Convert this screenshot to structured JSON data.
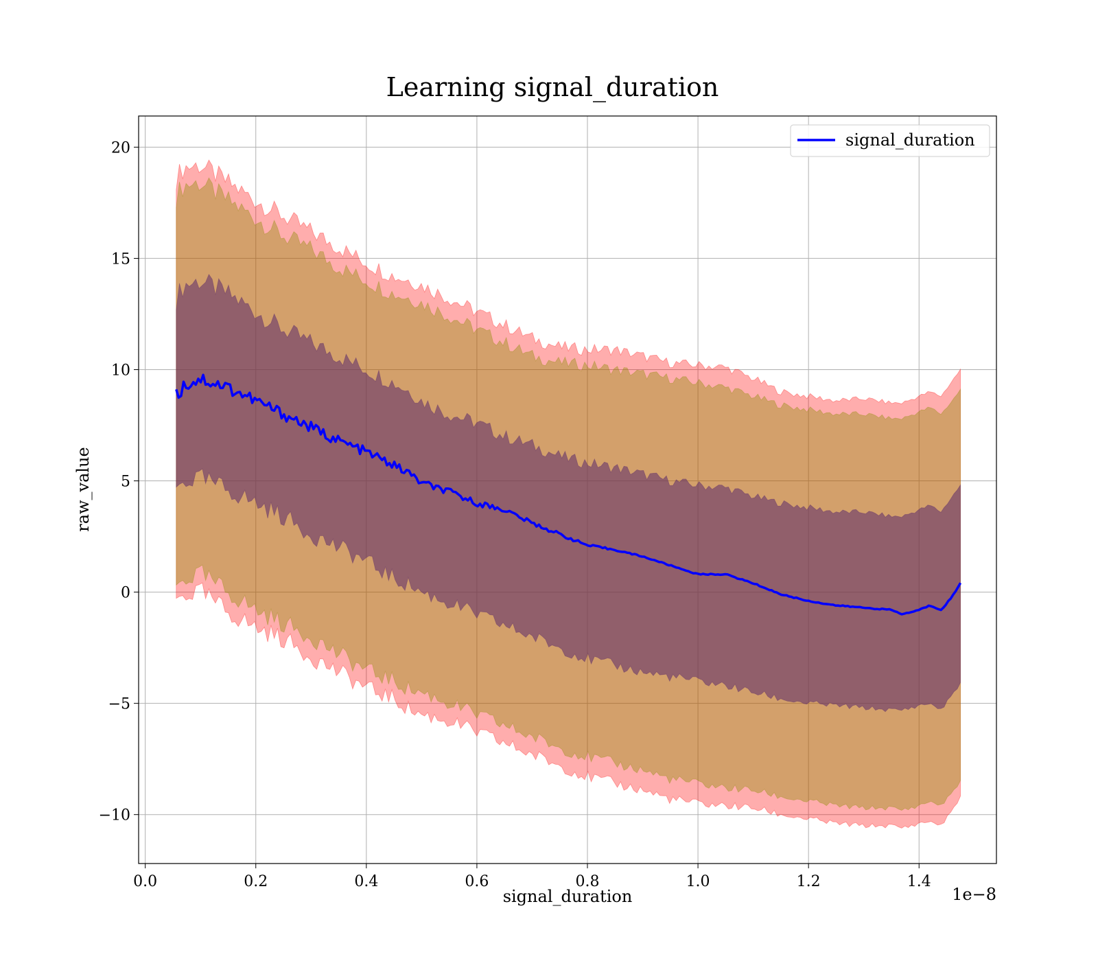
{
  "chart_data": {
    "type": "line",
    "title": "Learning signal_duration",
    "xlabel": "signal_duration",
    "ylabel": "raw_value",
    "x_offset_label": "1e−8",
    "x_scale_exponent": -8,
    "xlim": [
      -1.2e-10,
      1.54e-08
    ],
    "ylim": [
      -12.2,
      21.4
    ],
    "x_ticks": [
      0.0,
      2e-09,
      4e-09,
      6e-09,
      8e-09,
      1e-08,
      1.2e-08,
      1.4e-08
    ],
    "x_tick_labels": [
      "0.0",
      "0.2",
      "0.4",
      "0.6",
      "0.8",
      "1.0",
      "1.2",
      "1.4"
    ],
    "y_ticks": [
      -10,
      -5,
      0,
      5,
      10,
      15,
      20
    ],
    "y_tick_labels": [
      "−10",
      "−5",
      "0",
      "5",
      "10",
      "15",
      "20"
    ],
    "grid": true,
    "legend": {
      "placement": "upper right",
      "entries": [
        "signal_duration"
      ]
    },
    "colors": {
      "line": "#0000ff",
      "outer_band": "#ff0000",
      "middle_band": "#8b8b00",
      "inner_band": "#5b2a6b"
    },
    "x": [
      5.6e-10,
      7e-10,
      1e-09,
      1.5e-09,
      2e-09,
      2.5e-09,
      3e-09,
      3.5e-09,
      4e-09,
      4.5e-09,
      4.8e-09,
      5e-09,
      5.5e-09,
      6e-09,
      6.5e-09,
      7e-09,
      7.5e-09,
      8e-09,
      8.5e-09,
      9e-09,
      9.5e-09,
      1e-08,
      1.05e-08,
      1.1e-08,
      1.15e-08,
      1.2e-08,
      1.25e-08,
      1.3e-08,
      1.35e-08,
      1.37e-08,
      1.4e-08,
      1.42e-08,
      1.44e-08,
      1.46e-08,
      1.475e-08
    ],
    "series": [
      {
        "name": "signal_duration",
        "values": [
          8.8,
          9.3,
          9.6,
          9.2,
          8.6,
          8.0,
          7.4,
          6.8,
          6.3,
          5.7,
          5.3,
          4.9,
          4.5,
          4.0,
          3.7,
          3.1,
          2.6,
          2.1,
          1.9,
          1.6,
          1.2,
          0.8,
          0.8,
          0.4,
          -0.1,
          -0.4,
          -0.6,
          -0.7,
          -0.8,
          -1.0,
          -0.8,
          -0.6,
          -0.8,
          -0.2,
          0.4
        ]
      }
    ],
    "bands": [
      {
        "level": "outer",
        "lower": [
          -0.4,
          -0.1,
          0.0,
          -0.9,
          -1.6,
          -2.1,
          -2.9,
          -3.6,
          -4.3,
          -4.8,
          -5.3,
          -5.5,
          -5.8,
          -6.3,
          -6.8,
          -7.3,
          -7.8,
          -8.3,
          -8.6,
          -8.9,
          -9.3,
          -9.5,
          -9.6,
          -9.7,
          -10.0,
          -10.2,
          -10.4,
          -10.5,
          -10.5,
          -10.6,
          -10.4,
          -10.3,
          -10.5,
          -9.8,
          -9.2
        ],
        "upper": [
          18.6,
          19.1,
          19.2,
          18.4,
          17.6,
          16.9,
          16.2,
          15.5,
          14.8,
          14.2,
          14.0,
          13.8,
          13.2,
          12.6,
          12.0,
          11.4,
          11.0,
          10.9,
          10.9,
          10.6,
          10.3,
          10.2,
          10.1,
          9.6,
          9.0,
          8.8,
          8.6,
          8.7,
          8.5,
          8.5,
          8.8,
          9.0,
          8.8,
          9.5,
          10.0
        ]
      },
      {
        "level": "middle",
        "lower": [
          0.2,
          0.6,
          0.8,
          0.0,
          -0.8,
          -1.4,
          -2.0,
          -2.8,
          -3.5,
          -4.0,
          -4.4,
          -4.5,
          -5.0,
          -5.5,
          -6.0,
          -6.5,
          -7.0,
          -7.4,
          -7.7,
          -8.0,
          -8.4,
          -8.6,
          -8.8,
          -8.9,
          -9.2,
          -9.4,
          -9.6,
          -9.7,
          -9.7,
          -9.8,
          -9.6,
          -9.4,
          -9.6,
          -9.0,
          -8.5
        ]
      },
      {
        "level": "middle-upper",
        "upper": [
          17.8,
          18.3,
          18.4,
          17.6,
          16.8,
          16.0,
          15.4,
          14.6,
          14.0,
          13.4,
          13.2,
          13.0,
          12.4,
          11.8,
          11.2,
          10.6,
          10.3,
          10.2,
          10.0,
          9.8,
          9.6,
          9.4,
          9.2,
          8.8,
          8.4,
          8.2,
          8.0,
          8.0,
          7.8,
          7.8,
          8.1,
          8.3,
          8.0,
          8.6,
          9.1
        ]
      },
      {
        "level": "inner",
        "lower": [
          4.6,
          5.0,
          5.1,
          4.6,
          4.0,
          3.4,
          2.6,
          2.0,
          1.4,
          0.6,
          0.3,
          0.0,
          -0.5,
          -1.0,
          -1.5,
          -2.0,
          -2.5,
          -3.0,
          -3.3,
          -3.6,
          -3.8,
          -4.0,
          -4.2,
          -4.5,
          -4.8,
          -5.0,
          -5.1,
          -5.2,
          -5.3,
          -5.3,
          -5.1,
          -5.0,
          -5.3,
          -4.6,
          -4.1
        ],
        "upper": [
          13.2,
          13.8,
          14.0,
          13.4,
          12.6,
          11.8,
          11.2,
          10.6,
          10.0,
          9.4,
          9.0,
          8.6,
          8.0,
          7.6,
          7.0,
          6.6,
          6.1,
          5.8,
          5.6,
          5.3,
          5.0,
          4.8,
          4.7,
          4.3,
          4.0,
          3.8,
          3.6,
          3.6,
          3.4,
          3.4,
          3.7,
          3.9,
          3.6,
          4.3,
          4.8
        ]
      }
    ]
  }
}
